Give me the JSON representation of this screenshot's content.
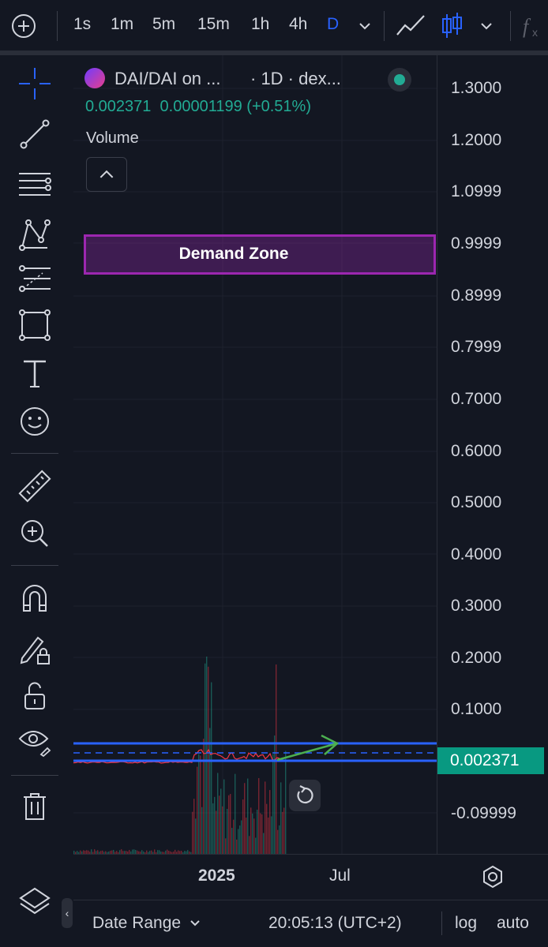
{
  "toolbar": {
    "intervals": [
      "1s",
      "1m",
      "5m",
      "15m",
      "1h",
      "4h",
      "D"
    ],
    "active_interval": "D",
    "icons": [
      "add-symbol-icon",
      "chevron-down-icon",
      "line-chart-icon",
      "candles-icon",
      "chevron-down-icon",
      "indicators-fx-icon"
    ]
  },
  "left_tools": [
    "crosshair-icon",
    "trend-line-icon",
    "fib-lines-icon",
    "pattern-icon",
    "forecast-icon",
    "rectangle-icon",
    "text-icon",
    "emoji-icon",
    "ruler-icon",
    "zoom-in-icon",
    "magnet-icon",
    "lock-drawing-icon",
    "unlock-icon",
    "eye-icon",
    "trash-icon",
    "layers-icon"
  ],
  "legend": {
    "symbol": "DAI/DAI on ...",
    "meta": "· 1D · dex...",
    "last": "0.002371",
    "change": "0.00001199 (+0.51%)",
    "volume_label": "Volume"
  },
  "demand_zone": {
    "label": "Demand Zone",
    "color": "#9c27b0"
  },
  "price_axis": {
    "ticks": [
      "1.3000",
      "1.2000",
      "1.0999",
      "0.9999",
      "0.8999",
      "0.7999",
      "0.7000",
      "0.6000",
      "0.5000",
      "0.4000",
      "0.3000",
      "0.2000",
      "0.1000",
      "-0.09999"
    ],
    "last_price": "0.002371",
    "last_price_color": "#089981"
  },
  "time_axis": {
    "ticks": [
      "2025",
      "Jul"
    ]
  },
  "bottom_bar": {
    "date_range": "Date Range",
    "clock": "20:05:13 (UTC+2)",
    "log": "log",
    "auto": "auto"
  },
  "colors": {
    "background": "#131722",
    "accent": "#2962ff",
    "up": "#22ab94",
    "down": "#f23645",
    "support_line": "#2962ff",
    "arrow": "#4caf50"
  }
}
